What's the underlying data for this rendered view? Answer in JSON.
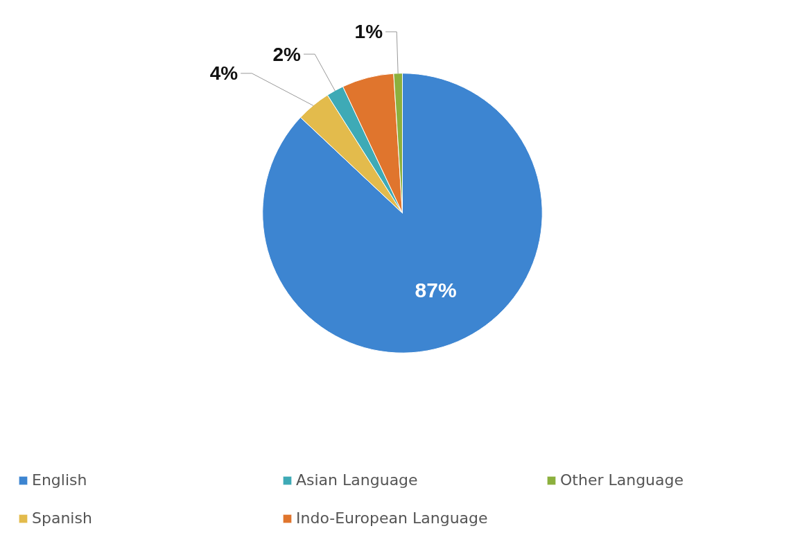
{
  "chart_data": {
    "type": "pie",
    "categories": [
      "English",
      "Spanish",
      "Asian Language",
      "Indo-European Language",
      "Other Language"
    ],
    "values": [
      87,
      4,
      2,
      6,
      1
    ],
    "colors": [
      "#3d85d1",
      "#e3bb4c",
      "#3eaab6",
      "#e0752d",
      "#8cb03d"
    ],
    "value_labels": [
      "87%",
      "4%",
      "2%",
      null,
      "1%"
    ],
    "legend": "bottom"
  }
}
